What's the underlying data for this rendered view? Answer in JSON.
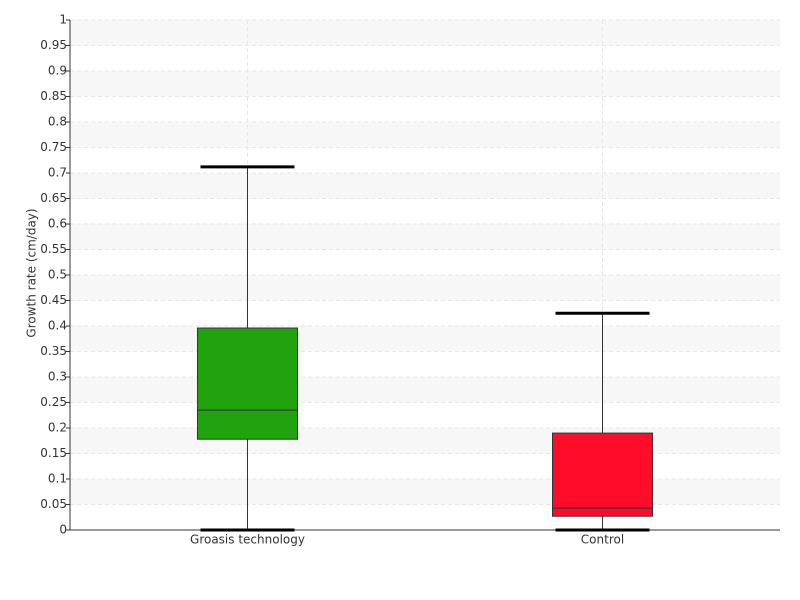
{
  "chart_data": {
    "type": "box",
    "y_label": "Growth rate (cm/day)",
    "categories": [
      "Groasis technology",
      "Control"
    ],
    "boxes": [
      {
        "min": 0,
        "q1": 0.178,
        "median": 0.235,
        "q3": 0.396,
        "max": 0.712,
        "color": "#21a30f"
      },
      {
        "min": 0,
        "q1": 0.027,
        "median": 0.043,
        "q3": 0.19,
        "max": 0.425,
        "color": "#ff0c2a"
      }
    ],
    "ylim": [
      0,
      1
    ],
    "yticks": [
      0,
      0.05,
      0.1,
      0.15,
      0.2,
      0.25,
      0.3,
      0.35,
      0.4,
      0.45,
      0.5,
      0.55,
      0.6,
      0.65,
      0.7,
      0.75,
      0.8,
      0.85,
      0.9,
      0.95,
      1
    ],
    "grid": true
  }
}
